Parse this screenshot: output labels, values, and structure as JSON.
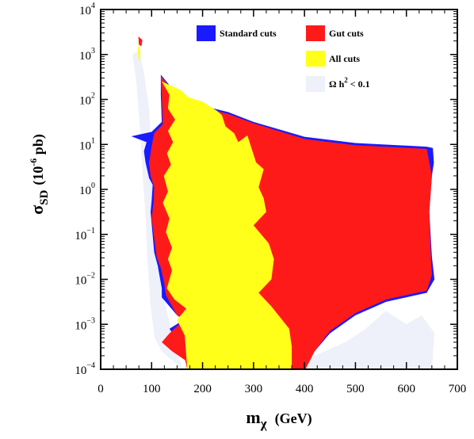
{
  "chart_data": {
    "type": "area",
    "xlabel": {
      "main": "m",
      "sub": "χ",
      "unit": "(GeV)"
    },
    "ylabel": {
      "main": "σ",
      "sub": "SD",
      "unit_pre": "(10",
      "unit_exp": "-6",
      "unit_post": " pb)"
    },
    "xlim": [
      0,
      700
    ],
    "ylim_log10": [
      -4,
      4
    ],
    "x_ticks": [
      "0",
      "100",
      "200",
      "300",
      "400",
      "500",
      "600",
      "700"
    ],
    "y_ticks": [
      {
        "mant": "10",
        "exp": "−4",
        "v": -4
      },
      {
        "mant": "10",
        "exp": "−3",
        "v": -3
      },
      {
        "mant": "10",
        "exp": "−2",
        "v": -2
      },
      {
        "mant": "10",
        "exp": "−1",
        "v": -1
      },
      {
        "mant": "10",
        "exp": "0",
        "v": 0
      },
      {
        "mant": "10",
        "exp": "1",
        "v": 1
      },
      {
        "mant": "10",
        "exp": "2",
        "v": 2
      },
      {
        "mant": "10",
        "exp": "3",
        "v": 3
      },
      {
        "mant": "10",
        "exp": "4",
        "v": 4
      }
    ],
    "legend": [
      {
        "key": "standard",
        "label": "Standard cuts",
        "color": "#1a1aff"
      },
      {
        "key": "gut",
        "label": "Gut cuts",
        "color": "#ff1a1a"
      },
      {
        "key": "all",
        "label": "All cuts",
        "color": "#ffff1a"
      },
      {
        "key": "omega",
        "label_pre": "Ω h",
        "label_sup": "2",
        "label_post": " < 0.1",
        "color": "#eef1f9"
      }
    ],
    "series": [
      {
        "key": "omega",
        "points": [
          [
            62,
            3.0
          ],
          [
            70,
            2.4
          ],
          [
            78,
            1.2
          ],
          [
            82,
            0.4
          ],
          [
            88,
            -0.6
          ],
          [
            92,
            -1.6
          ],
          [
            98,
            -2.6
          ],
          [
            106,
            -3.3
          ],
          [
            120,
            -3.6
          ],
          [
            150,
            -3.9
          ],
          [
            160,
            -4.0
          ],
          [
            300,
            -4.0
          ],
          [
            450,
            -4.0
          ],
          [
            560,
            -4.0
          ],
          [
            650,
            -4.0
          ],
          [
            655,
            -3.2
          ],
          [
            630,
            -2.8
          ],
          [
            600,
            -3.0
          ],
          [
            560,
            -2.7
          ],
          [
            520,
            -3.1
          ],
          [
            480,
            -3.4
          ],
          [
            440,
            -3.6
          ],
          [
            400,
            -3.8
          ],
          [
            380,
            -4.0
          ],
          [
            160,
            -4.0
          ],
          [
            140,
            -3.2
          ],
          [
            120,
            -2.2
          ],
          [
            105,
            -1.3
          ],
          [
            102,
            -0.2
          ],
          [
            100,
            0.8
          ],
          [
            95,
            1.8
          ],
          [
            85,
            2.6
          ],
          [
            75,
            3.1
          ]
        ]
      },
      {
        "key": "standard",
        "points": [
          [
            118,
            2.55
          ],
          [
            160,
            1.97
          ],
          [
            250,
            1.72
          ],
          [
            300,
            1.5
          ],
          [
            400,
            1.17
          ],
          [
            500,
            1.03
          ],
          [
            640,
            0.95
          ],
          [
            652,
            0.92
          ],
          [
            654,
            0.6
          ],
          [
            650,
            0.3
          ],
          [
            645,
            -0.5
          ],
          [
            650,
            -1.5
          ],
          [
            655,
            -2.0
          ],
          [
            640,
            -2.3
          ],
          [
            560,
            -2.5
          ],
          [
            500,
            -2.8
          ],
          [
            450,
            -3.2
          ],
          [
            420,
            -3.6
          ],
          [
            400,
            -4.0
          ],
          [
            170,
            -4.0
          ],
          [
            165,
            -3.75
          ],
          [
            150,
            -3.35
          ],
          [
            135,
            -3.1
          ],
          [
            163,
            -2.9
          ],
          [
            150,
            -2.8
          ],
          [
            120,
            -2.4
          ],
          [
            120,
            -2.2
          ],
          [
            112,
            -1.7
          ],
          [
            105,
            -1.4
          ],
          [
            98,
            -0.5
          ],
          [
            100,
            -0.25
          ],
          [
            102,
            0.1
          ],
          [
            95,
            0.25
          ],
          [
            88,
            0.6
          ],
          [
            85,
            0.85
          ],
          [
            90,
            1.05
          ],
          [
            60,
            1.18
          ],
          [
            100,
            1.28
          ],
          [
            120,
            1.5
          ],
          [
            118,
            2.1
          ]
        ]
      },
      {
        "key": "gut",
        "points": [
          [
            118,
            2.52
          ],
          [
            160,
            1.93
          ],
          [
            250,
            1.68
          ],
          [
            300,
            1.47
          ],
          [
            400,
            1.12
          ],
          [
            500,
            0.98
          ],
          [
            640,
            0.9
          ],
          [
            645,
            0.6
          ],
          [
            650,
            0.3
          ],
          [
            645,
            -0.5
          ],
          [
            648,
            -1.5
          ],
          [
            650,
            -1.9
          ],
          [
            640,
            -2.25
          ],
          [
            560,
            -2.45
          ],
          [
            500,
            -2.75
          ],
          [
            450,
            -3.15
          ],
          [
            420,
            -3.6
          ],
          [
            402,
            -4.0
          ],
          [
            170,
            -4.0
          ],
          [
            166,
            -3.8
          ],
          [
            140,
            -3.6
          ],
          [
            120,
            -3.4
          ],
          [
            135,
            -3.2
          ],
          [
            163,
            -2.9
          ],
          [
            150,
            -2.8
          ],
          [
            128,
            -2.35
          ],
          [
            125,
            -2.1
          ],
          [
            118,
            -1.75
          ],
          [
            110,
            -1.5
          ],
          [
            100,
            -0.65
          ],
          [
            104,
            -0.25
          ],
          [
            105,
            0.05
          ],
          [
            98,
            0.3
          ],
          [
            95,
            0.6
          ],
          [
            100,
            0.95
          ],
          [
            105,
            1.25
          ],
          [
            122,
            1.45
          ],
          [
            120,
            2.1
          ]
        ]
      },
      {
        "key": "all",
        "points": [
          [
            120,
            2.4
          ],
          [
            158,
            2.2
          ],
          [
            172,
            2.05
          ],
          [
            200,
            1.95
          ],
          [
            228,
            1.75
          ],
          [
            238,
            1.65
          ],
          [
            245,
            1.4
          ],
          [
            262,
            1.25
          ],
          [
            270,
            1.05
          ],
          [
            288,
            1.2
          ],
          [
            305,
            0.6
          ],
          [
            320,
            0.45
          ],
          [
            310,
            0.05
          ],
          [
            320,
            -0.2
          ],
          [
            325,
            -0.5
          ],
          [
            300,
            -0.8
          ],
          [
            330,
            -1.2
          ],
          [
            340,
            -1.55
          ],
          [
            335,
            -2.0
          ],
          [
            310,
            -2.3
          ],
          [
            335,
            -2.6
          ],
          [
            370,
            -3.1
          ],
          [
            375,
            -3.5
          ],
          [
            375,
            -4.0
          ],
          [
            170,
            -4.0
          ],
          [
            165,
            -3.25
          ],
          [
            150,
            -2.9
          ],
          [
            168,
            -2.65
          ],
          [
            145,
            -2.45
          ],
          [
            130,
            -2.2
          ],
          [
            140,
            -1.8
          ],
          [
            132,
            -1.55
          ],
          [
            140,
            -1.3
          ],
          [
            128,
            -0.95
          ],
          [
            135,
            -0.65
          ],
          [
            122,
            -0.3
          ],
          [
            132,
            -0.05
          ],
          [
            124,
            0.3
          ],
          [
            138,
            0.55
          ],
          [
            130,
            0.8
          ],
          [
            142,
            1.05
          ],
          [
            132,
            1.3
          ],
          [
            146,
            1.55
          ],
          [
            132,
            1.8
          ],
          [
            135,
            2.1
          ]
        ]
      },
      {
        "key": "omega",
        "points": [
          [
            72,
            3.4
          ],
          [
            74,
            3.2
          ],
          [
            80,
            2.8
          ],
          [
            76,
            2.6
          ],
          [
            74,
            3.0
          ]
        ]
      },
      {
        "key": "all",
        "points": [
          [
            73,
            3.22
          ],
          [
            78,
            3.08
          ],
          [
            77,
            2.85
          ],
          [
            74,
            2.9
          ]
        ]
      },
      {
        "key": "gut",
        "points": [
          [
            74,
            3.4
          ],
          [
            82,
            3.32
          ],
          [
            80,
            3.18
          ],
          [
            75,
            3.22
          ]
        ]
      }
    ]
  }
}
